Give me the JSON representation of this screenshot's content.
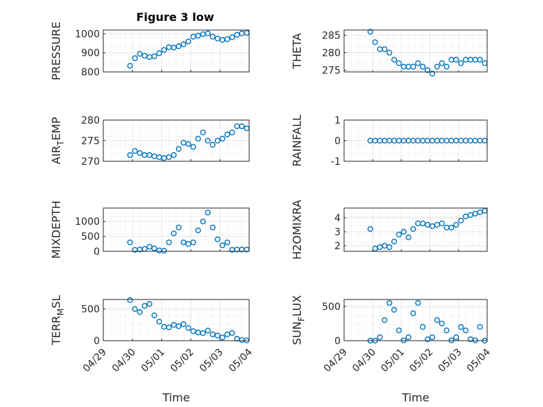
{
  "figure": {
    "title": "Figure 3 low"
  },
  "colors": {
    "marker": "#0072BD",
    "axis": "#262626",
    "grid": "#d9d9d9"
  },
  "chart_data": [
    {
      "type": "scatter",
      "title": "Figure 3 low",
      "ylabel_main": "PRESSURE",
      "xlabel": "",
      "ylim": [
        800,
        1020
      ],
      "yticks": [
        800,
        900,
        1000
      ],
      "x": [
        "04/29 22:00",
        "04/30 02:00",
        "04/30 06:00",
        "04/30 10:00",
        "04/30 14:00",
        "04/30 18:00",
        "04/30 22:00",
        "05/01 02:00",
        "05/01 06:00",
        "05/01 10:00",
        "05/01 14:00",
        "05/01 18:00",
        "05/01 22:00",
        "05/02 02:00",
        "05/02 06:00",
        "05/02 10:00",
        "05/02 14:00",
        "05/02 18:00",
        "05/02 22:00",
        "05/03 02:00",
        "05/03 06:00",
        "05/03 10:00",
        "05/03 14:00",
        "05/03 18:00",
        "05/03 22:00"
      ],
      "y": [
        832,
        872,
        895,
        885,
        878,
        882,
        898,
        915,
        930,
        928,
        935,
        945,
        960,
        985,
        990,
        998,
        1002,
        985,
        975,
        968,
        972,
        982,
        995,
        1002,
        1005
      ]
    },
    {
      "type": "scatter",
      "ylabel_main": "THETA",
      "xlabel": "",
      "ylim": [
        274.5,
        286.5
      ],
      "yticks": [
        275,
        280,
        285
      ],
      "x": [
        "04/29 22:00",
        "04/30 02:00",
        "04/30 06:00",
        "04/30 10:00",
        "04/30 14:00",
        "04/30 18:00",
        "04/30 22:00",
        "05/01 02:00",
        "05/01 06:00",
        "05/01 10:00",
        "05/01 14:00",
        "05/01 18:00",
        "05/01 22:00",
        "05/02 02:00",
        "05/02 06:00",
        "05/02 10:00",
        "05/02 14:00",
        "05/02 18:00",
        "05/02 22:00",
        "05/03 02:00",
        "05/03 06:00",
        "05/03 10:00",
        "05/03 14:00",
        "05/03 18:00",
        "05/03 22:00"
      ],
      "y": [
        286,
        283,
        281,
        281,
        280,
        278,
        277,
        276,
        276,
        276,
        277,
        276,
        275,
        274,
        276,
        277,
        276,
        278,
        278,
        277,
        278,
        278,
        278,
        278,
        277
      ]
    },
    {
      "type": "scatter",
      "ylabel_main": "AIR",
      "ylabel_sub": "T",
      "ylabel_rest": "EMP",
      "xlabel": "",
      "ylim": [
        270,
        280
      ],
      "yticks": [
        270,
        275,
        280
      ],
      "x": [
        "04/29 22:00",
        "04/30 02:00",
        "04/30 06:00",
        "04/30 10:00",
        "04/30 14:00",
        "04/30 18:00",
        "04/30 22:00",
        "05/01 02:00",
        "05/01 06:00",
        "05/01 10:00",
        "05/01 14:00",
        "05/01 18:00",
        "05/01 22:00",
        "05/02 02:00",
        "05/02 06:00",
        "05/02 10:00",
        "05/02 14:00",
        "05/02 18:00",
        "05/02 22:00",
        "05/03 02:00",
        "05/03 06:00",
        "05/03 10:00",
        "05/03 14:00",
        "05/03 18:00",
        "05/03 22:00"
      ],
      "y": [
        271.5,
        272.5,
        272,
        271.5,
        271.5,
        271.2,
        271,
        270.8,
        271,
        271.5,
        273,
        274.5,
        274.2,
        273.5,
        275.5,
        277,
        275,
        274,
        275,
        275.5,
        276.5,
        277,
        278.5,
        278.5,
        278
      ]
    },
    {
      "type": "scatter",
      "ylabel_main": "RAINFALL",
      "xlabel": "",
      "ylim": [
        -1,
        1
      ],
      "yticks": [
        -1,
        0,
        1
      ],
      "x": [
        "04/29 22:00",
        "04/30 02:00",
        "04/30 06:00",
        "04/30 10:00",
        "04/30 14:00",
        "04/30 18:00",
        "04/30 22:00",
        "05/01 02:00",
        "05/01 06:00",
        "05/01 10:00",
        "05/01 14:00",
        "05/01 18:00",
        "05/01 22:00",
        "05/02 02:00",
        "05/02 06:00",
        "05/02 10:00",
        "05/02 14:00",
        "05/02 18:00",
        "05/02 22:00",
        "05/03 02:00",
        "05/03 06:00",
        "05/03 10:00",
        "05/03 14:00",
        "05/03 18:00",
        "05/03 22:00"
      ],
      "y": [
        0,
        0,
        0,
        0,
        0,
        0,
        0,
        0,
        0,
        0,
        0,
        0,
        0,
        0,
        0,
        0,
        0,
        0,
        0,
        0,
        0,
        0,
        0,
        0,
        0
      ]
    },
    {
      "type": "scatter",
      "ylabel_main": "MIXDEPTH",
      "xlabel": "",
      "ylim": [
        0,
        1450
      ],
      "yticks": [
        0,
        500,
        1000
      ],
      "x": [
        "04/29 22:00",
        "04/30 02:00",
        "04/30 06:00",
        "04/30 10:00",
        "04/30 14:00",
        "04/30 18:00",
        "04/30 22:00",
        "05/01 02:00",
        "05/01 06:00",
        "05/01 10:00",
        "05/01 14:00",
        "05/01 18:00",
        "05/01 22:00",
        "05/02 02:00",
        "05/02 06:00",
        "05/02 10:00",
        "05/02 14:00",
        "05/02 18:00",
        "05/02 22:00",
        "05/03 02:00",
        "05/03 06:00",
        "05/03 10:00",
        "05/03 14:00",
        "05/03 18:00",
        "05/03 22:00"
      ],
      "y": [
        300,
        50,
        60,
        80,
        150,
        100,
        30,
        20,
        300,
        600,
        800,
        300,
        250,
        300,
        700,
        1000,
        1300,
        800,
        400,
        200,
        300,
        50,
        60,
        60,
        60
      ]
    },
    {
      "type": "scatter",
      "ylabel_main": "H2OMIXRA",
      "xlabel": "",
      "ylim": [
        1.6,
        4.7
      ],
      "yticks": [
        2,
        3,
        4
      ],
      "x": [
        "04/29 22:00",
        "04/30 02:00",
        "04/30 06:00",
        "04/30 10:00",
        "04/30 14:00",
        "04/30 18:00",
        "04/30 22:00",
        "05/01 02:00",
        "05/01 06:00",
        "05/01 10:00",
        "05/01 14:00",
        "05/01 18:00",
        "05/01 22:00",
        "05/02 02:00",
        "05/02 06:00",
        "05/02 10:00",
        "05/02 14:00",
        "05/02 18:00",
        "05/02 22:00",
        "05/03 02:00",
        "05/03 06:00",
        "05/03 10:00",
        "05/03 14:00",
        "05/03 18:00",
        "05/03 22:00"
      ],
      "y": [
        3.2,
        1.8,
        1.9,
        2.0,
        1.9,
        2.3,
        2.8,
        3.0,
        2.6,
        3.2,
        3.6,
        3.6,
        3.5,
        3.4,
        3.5,
        3.6,
        3.3,
        3.3,
        3.5,
        3.8,
        4.1,
        4.2,
        4.3,
        4.4,
        4.5
      ]
    },
    {
      "type": "scatter",
      "ylabel_main": "TERR",
      "ylabel_sub": "M",
      "ylabel_rest": "SL",
      "xlabel": "Time",
      "ylim": [
        0,
        650
      ],
      "yticks": [
        0,
        500
      ],
      "xticklabels": [
        "04/29",
        "04/30",
        "05/01",
        "05/02",
        "05/03",
        "05/04"
      ],
      "x": [
        "04/29 22:00",
        "04/30 02:00",
        "04/30 06:00",
        "04/30 10:00",
        "04/30 14:00",
        "04/30 18:00",
        "04/30 22:00",
        "05/01 02:00",
        "05/01 06:00",
        "05/01 10:00",
        "05/01 14:00",
        "05/01 18:00",
        "05/01 22:00",
        "05/02 02:00",
        "05/02 06:00",
        "05/02 10:00",
        "05/02 14:00",
        "05/02 18:00",
        "05/02 22:00",
        "05/03 02:00",
        "05/03 06:00",
        "05/03 10:00",
        "05/03 14:00",
        "05/03 18:00",
        "05/03 22:00"
      ],
      "y": [
        640,
        500,
        450,
        550,
        580,
        400,
        300,
        220,
        210,
        250,
        230,
        260,
        200,
        150,
        130,
        120,
        160,
        100,
        80,
        50,
        100,
        120,
        30,
        10,
        5
      ]
    },
    {
      "type": "scatter",
      "ylabel_main": "SUN",
      "ylabel_sub": "F",
      "ylabel_rest": "LUX",
      "xlabel": "Time",
      "ylim": [
        0,
        600
      ],
      "yticks": [
        0,
        500
      ],
      "xticklabels": [
        "04/29",
        "04/30",
        "05/01",
        "05/02",
        "05/03",
        "05/04"
      ],
      "x": [
        "04/29 22:00",
        "04/30 02:00",
        "04/30 06:00",
        "04/30 10:00",
        "04/30 14:00",
        "04/30 18:00",
        "04/30 22:00",
        "05/01 02:00",
        "05/01 06:00",
        "05/01 10:00",
        "05/01 14:00",
        "05/01 18:00",
        "05/01 22:00",
        "05/02 02:00",
        "05/02 06:00",
        "05/02 10:00",
        "05/02 14:00",
        "05/02 18:00",
        "05/02 22:00",
        "05/03 02:00",
        "05/03 06:00",
        "05/03 10:00",
        "05/03 14:00",
        "05/03 18:00",
        "05/03 22:00"
      ],
      "y": [
        0,
        0,
        50,
        300,
        550,
        450,
        150,
        5,
        50,
        400,
        550,
        200,
        20,
        50,
        300,
        250,
        150,
        5,
        50,
        200,
        150,
        20,
        5,
        200,
        0
      ]
    }
  ]
}
